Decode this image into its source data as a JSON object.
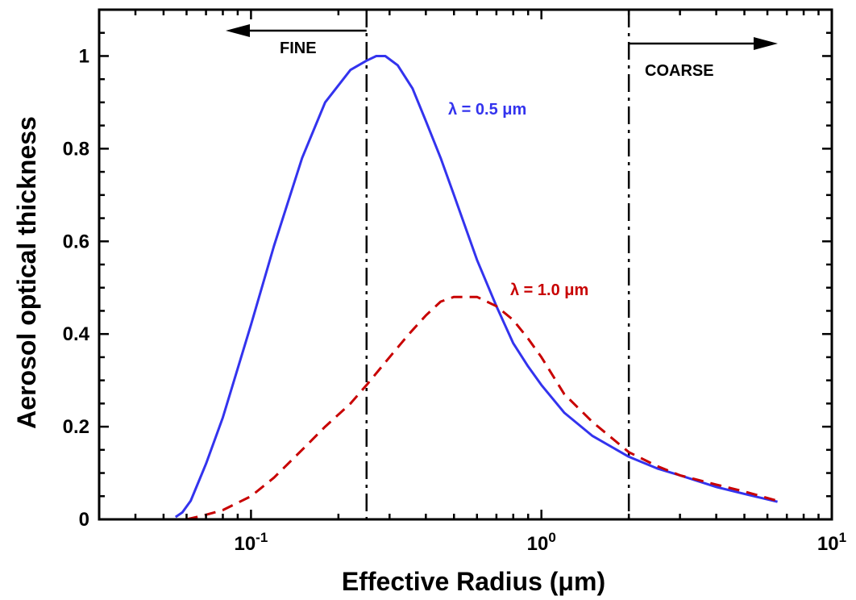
{
  "chart_data": {
    "type": "line",
    "x_scale": "log",
    "xlim": [
      0.03,
      10
    ],
    "ylim": [
      0,
      1.1
    ],
    "xlabel": "Effective Radius (μm)",
    "ylabel": "Aerosol optical thickness",
    "x_ticks": [
      {
        "value": 0.1,
        "base": "10",
        "exp": "-1"
      },
      {
        "value": 1,
        "base": "10",
        "exp": "0"
      },
      {
        "value": 10,
        "base": "10",
        "exp": "1"
      }
    ],
    "y_ticks": [
      {
        "value": 0,
        "label": "0"
      },
      {
        "value": 0.2,
        "label": "0.2"
      },
      {
        "value": 0.4,
        "label": "0.4"
      },
      {
        "value": 0.6,
        "label": "0.6"
      },
      {
        "value": 0.8,
        "label": "0.8"
      },
      {
        "value": 1.0,
        "label": "1"
      }
    ],
    "grid": false,
    "series": [
      {
        "name": "λ = 0.5 μm",
        "color": "#3333ee",
        "style": "solid",
        "x": [
          0.055,
          0.058,
          0.062,
          0.07,
          0.08,
          0.1,
          0.12,
          0.15,
          0.18,
          0.22,
          0.25,
          0.27,
          0.29,
          0.32,
          0.36,
          0.4,
          0.45,
          0.5,
          0.6,
          0.7,
          0.8,
          0.9,
          1.0,
          1.2,
          1.5,
          2.0,
          2.5,
          3.0,
          4.0,
          5.0,
          6.5
        ],
        "y": [
          0.005,
          0.015,
          0.04,
          0.12,
          0.22,
          0.42,
          0.59,
          0.78,
          0.9,
          0.97,
          0.99,
          1.0,
          1.0,
          0.98,
          0.93,
          0.86,
          0.78,
          0.7,
          0.56,
          0.46,
          0.38,
          0.33,
          0.29,
          0.23,
          0.18,
          0.135,
          0.11,
          0.095,
          0.07,
          0.055,
          0.038
        ]
      },
      {
        "name": "λ = 1.0 μm",
        "color": "#c80000",
        "style": "dashed",
        "x": [
          0.06,
          0.07,
          0.08,
          0.1,
          0.12,
          0.15,
          0.18,
          0.22,
          0.25,
          0.3,
          0.35,
          0.4,
          0.45,
          0.5,
          0.6,
          0.7,
          0.8,
          0.9,
          1.0,
          1.2,
          1.5,
          2.0,
          2.5,
          3.0,
          4.0,
          5.0,
          6.5
        ],
        "y": [
          0.0,
          0.01,
          0.02,
          0.05,
          0.09,
          0.15,
          0.2,
          0.25,
          0.29,
          0.35,
          0.4,
          0.44,
          0.47,
          0.48,
          0.48,
          0.46,
          0.43,
          0.39,
          0.35,
          0.27,
          0.21,
          0.145,
          0.115,
          0.095,
          0.075,
          0.06,
          0.04
        ]
      }
    ],
    "vlines": [
      {
        "x": 0.25,
        "style": "dash-dot"
      },
      {
        "x": 2.0,
        "style": "dash-dot"
      }
    ],
    "annotations": {
      "fine": "FINE",
      "coarse": "COARSE",
      "blue_label": "λ = 0.5 μm",
      "red_label": "λ = 1.0 μm"
    }
  }
}
